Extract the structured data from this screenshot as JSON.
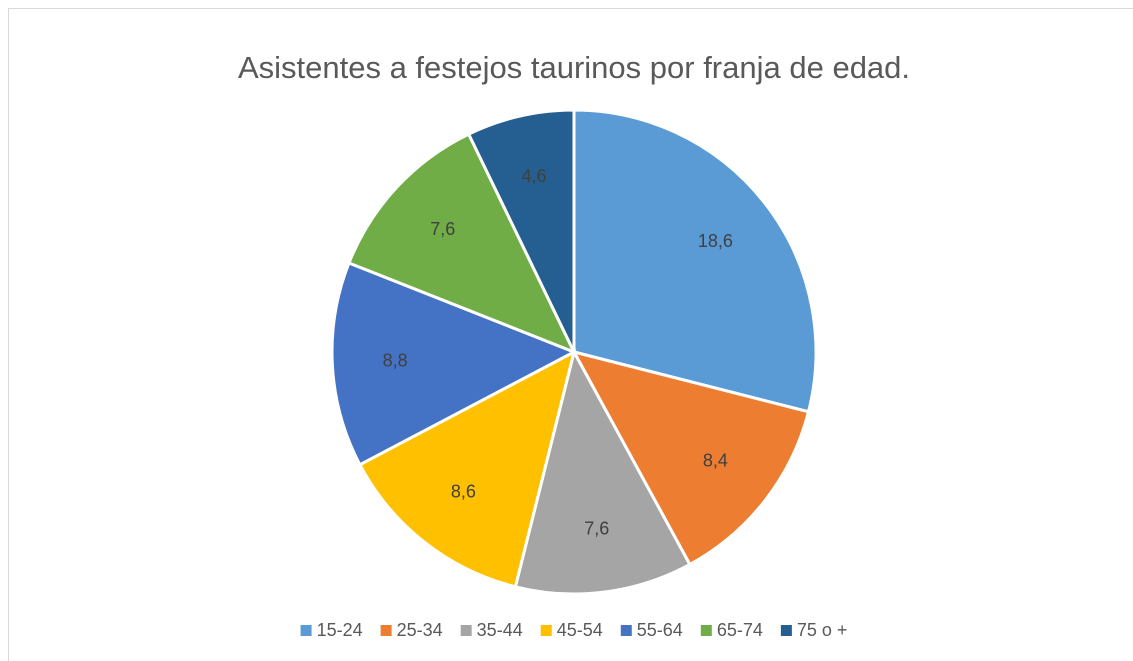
{
  "chart_data": {
    "type": "pie",
    "title": "Asistentes a festejos taurinos por franja de edad.",
    "categories": [
      "15-24",
      "25-34",
      "35-44",
      "45-54",
      "55-64",
      "65-74",
      "75 o +"
    ],
    "values": [
      18.6,
      8.4,
      7.6,
      8.6,
      8.8,
      7.6,
      4.6
    ],
    "value_labels": [
      "18,6",
      "8,4",
      "7,6",
      "8,6",
      "8,8",
      "7,6",
      "4,6"
    ],
    "colors": [
      "#5b9bd5",
      "#ed7d31",
      "#a5a5a5",
      "#ffc000",
      "#4472c4",
      "#70ad47",
      "#255e91"
    ],
    "legend": "bottom"
  }
}
